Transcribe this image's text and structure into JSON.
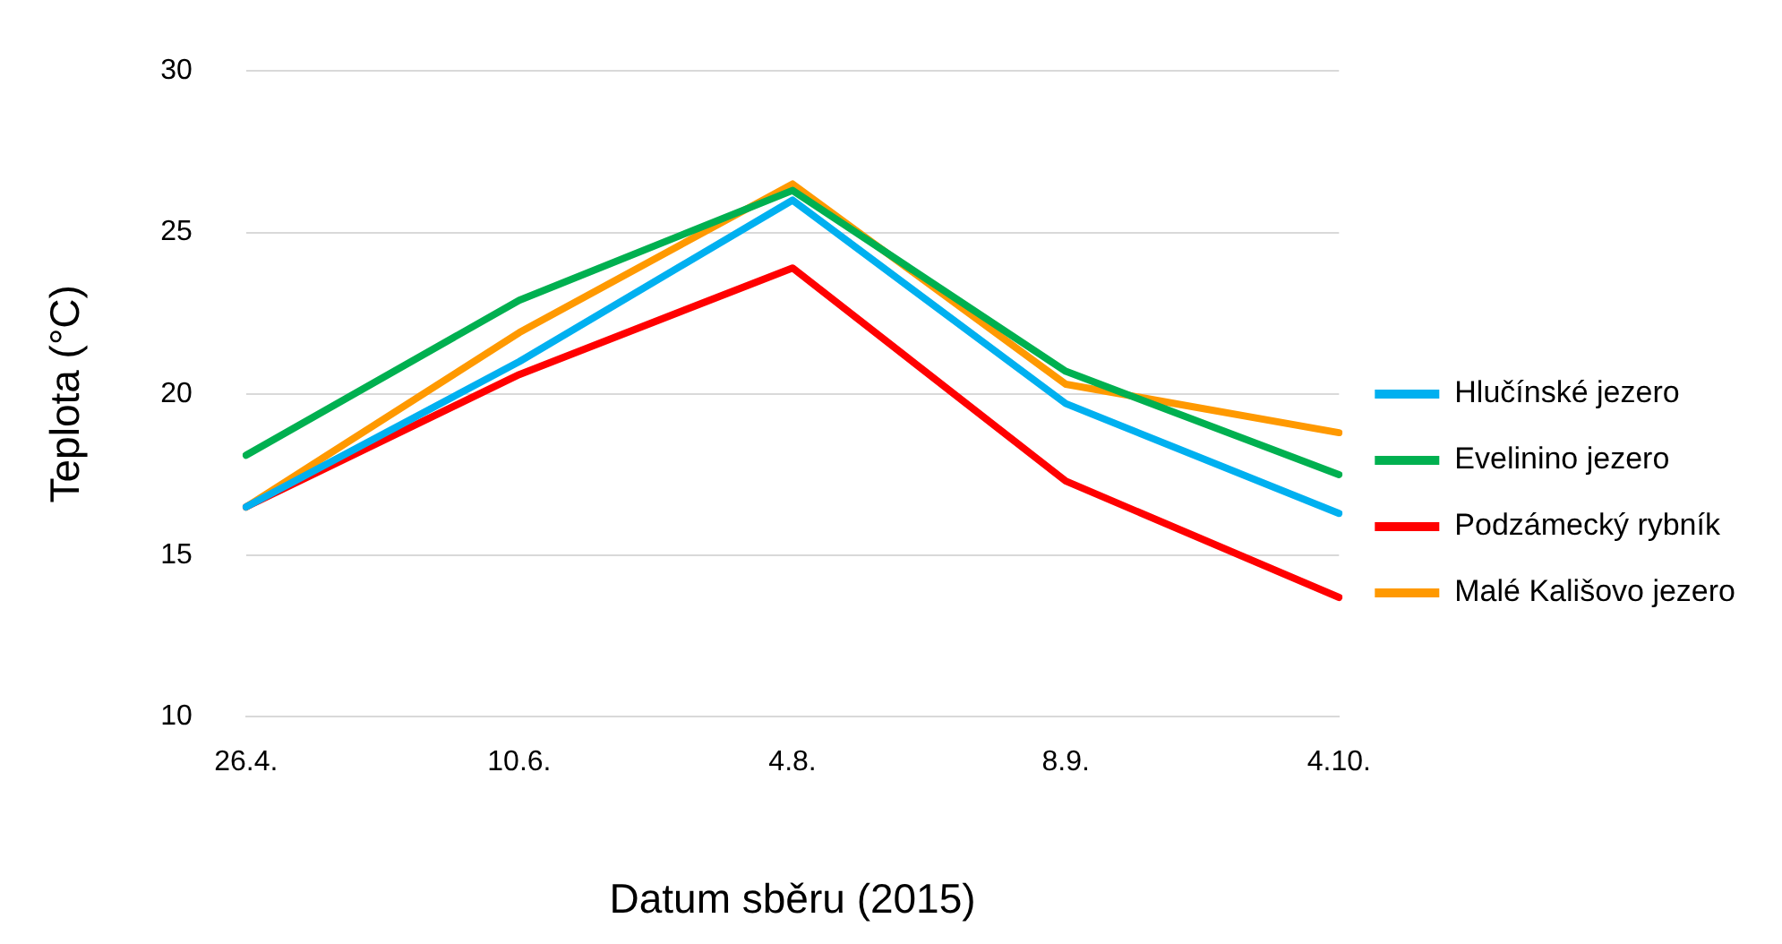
{
  "chart_data": {
    "type": "line",
    "xlabel": "Datum sběru (2015)",
    "ylabel": "Teplota (°C)",
    "categories": [
      "26.4.",
      "10.6.",
      "4.8.",
      "8.9.",
      "4.10."
    ],
    "series": [
      {
        "name": "Hlučínské jezero",
        "color": "#00b0f0",
        "values": [
          16.5,
          21.0,
          26.0,
          19.7,
          16.3
        ]
      },
      {
        "name": "Evelinino jezero",
        "color": "#00b050",
        "values": [
          18.1,
          22.9,
          26.3,
          20.7,
          17.5
        ]
      },
      {
        "name": "Podzámecký rybník",
        "color": "#ff0000",
        "values": [
          16.5,
          20.6,
          23.9,
          17.3,
          13.7
        ]
      },
      {
        "name": "Malé Kališovo jezero",
        "color": "#ff9900",
        "values": [
          16.5,
          21.9,
          26.5,
          20.3,
          18.8
        ]
      }
    ],
    "ylim": [
      10,
      30
    ],
    "yticks": [
      10,
      15,
      20,
      25,
      30
    ],
    "grid": "y",
    "legend": "right",
    "marker": "none",
    "line_style": "solid"
  }
}
